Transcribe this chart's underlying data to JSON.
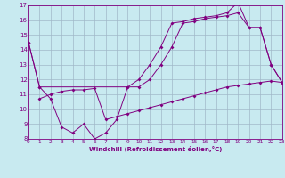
{
  "xlabel": "Windchill (Refroidissement éolien,°C)",
  "bg_color": "#c8eaf0",
  "line_color": "#800080",
  "grid_color": "#a0b8c8",
  "xlim": [
    0,
    23
  ],
  "ylim": [
    8,
    17
  ],
  "xticks": [
    0,
    1,
    2,
    3,
    4,
    5,
    6,
    7,
    8,
    9,
    10,
    11,
    12,
    13,
    14,
    15,
    16,
    17,
    18,
    19,
    20,
    21,
    22,
    23
  ],
  "yticks": [
    8,
    9,
    10,
    11,
    12,
    13,
    14,
    15,
    16,
    17
  ],
  "series": [
    {
      "x": [
        0,
        1,
        2,
        3,
        4,
        5,
        6,
        7,
        8,
        9,
        10,
        11,
        12,
        13,
        14,
        15,
        16,
        17,
        18,
        19,
        20,
        21,
        22,
        23
      ],
      "y": [
        14.5,
        11.5,
        10.7,
        8.8,
        8.4,
        9.0,
        8.0,
        8.4,
        9.3,
        11.5,
        11.5,
        12.0,
        13.0,
        14.2,
        15.8,
        15.9,
        16.1,
        16.2,
        16.3,
        16.5,
        15.5,
        15.5,
        13.0,
        11.8
      ]
    },
    {
      "x": [
        1,
        2,
        3,
        4,
        5,
        6,
        7,
        8,
        9,
        10,
        11,
        12,
        13,
        14,
        15,
        16,
        17,
        18,
        19,
        20,
        21,
        22,
        23
      ],
      "y": [
        10.7,
        11.0,
        11.2,
        11.3,
        11.3,
        11.4,
        9.3,
        9.5,
        9.7,
        9.9,
        10.1,
        10.3,
        10.5,
        10.7,
        10.9,
        11.1,
        11.3,
        11.5,
        11.6,
        11.7,
        11.8,
        11.9,
        11.8
      ]
    },
    {
      "x": [
        0,
        1,
        9,
        10,
        11,
        12,
        13,
        14,
        15,
        16,
        17,
        18,
        19,
        20,
        21,
        22,
        23
      ],
      "y": [
        14.5,
        11.5,
        11.5,
        12.0,
        13.0,
        14.2,
        15.8,
        15.9,
        16.1,
        16.2,
        16.3,
        16.5,
        17.2,
        15.5,
        15.5,
        13.0,
        11.8
      ]
    }
  ]
}
